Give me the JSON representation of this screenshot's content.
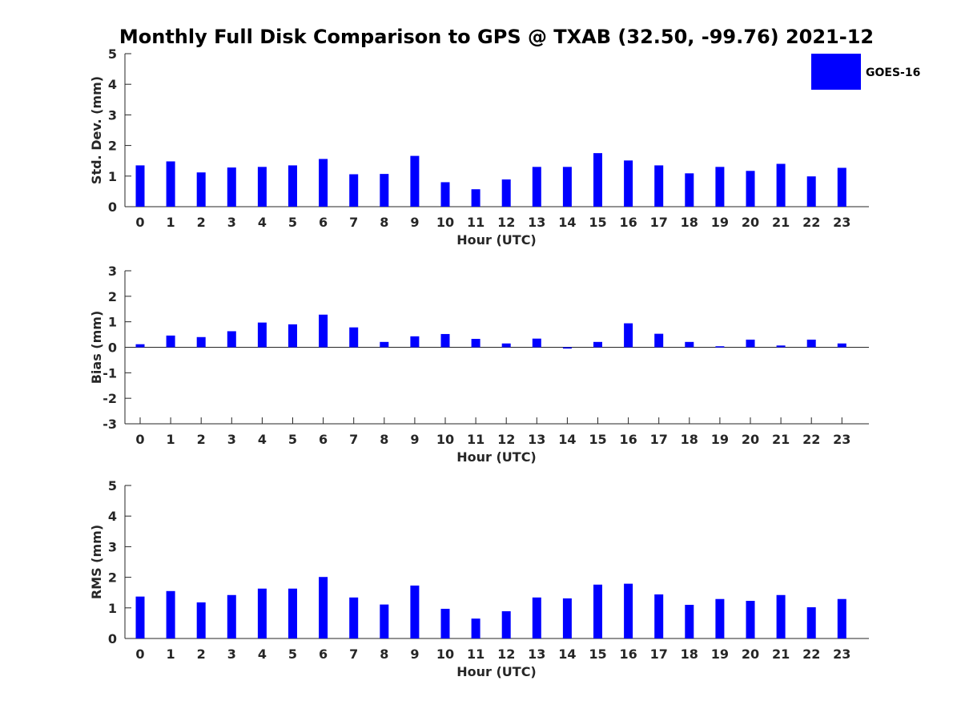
{
  "title": "Monthly Full Disk Comparison to GPS @ TXAB (32.50, -99.76) 2021-12",
  "colors": {
    "bar": "#0000ff",
    "axis": "#262626"
  },
  "legend": {
    "label": "GOES-16",
    "placement": "top-right"
  },
  "chart_data": [
    {
      "type": "bar",
      "xlabel": "Hour (UTC)",
      "ylabel": "Std. Dev. (mm)",
      "ylim": [
        0,
        5
      ],
      "yticks": [
        0,
        1,
        2,
        3,
        4,
        5
      ],
      "categories": [
        "0",
        "1",
        "2",
        "3",
        "4",
        "5",
        "6",
        "7",
        "8",
        "9",
        "10",
        "11",
        "12",
        "13",
        "14",
        "15",
        "16",
        "17",
        "18",
        "19",
        "20",
        "21",
        "22",
        "23"
      ],
      "series": [
        {
          "name": "GOES-16",
          "values": [
            1.35,
            1.48,
            1.12,
            1.28,
            1.3,
            1.35,
            1.56,
            1.06,
            1.07,
            1.66,
            0.8,
            0.57,
            0.89,
            1.3,
            1.3,
            1.75,
            1.51,
            1.35,
            1.09,
            1.3,
            1.17,
            1.4,
            0.99,
            1.27
          ]
        }
      ]
    },
    {
      "type": "bar",
      "xlabel": "Hour (UTC)",
      "ylabel": "Bias (mm)",
      "ylim": [
        -3,
        3
      ],
      "yticks": [
        -3,
        -2,
        -1,
        0,
        1,
        2,
        3
      ],
      "categories": [
        "0",
        "1",
        "2",
        "3",
        "4",
        "5",
        "6",
        "7",
        "8",
        "9",
        "10",
        "11",
        "12",
        "13",
        "14",
        "15",
        "16",
        "17",
        "18",
        "19",
        "20",
        "21",
        "22",
        "23"
      ],
      "series": [
        {
          "name": "GOES-16",
          "values": [
            0.12,
            0.46,
            0.4,
            0.63,
            0.97,
            0.9,
            1.28,
            0.78,
            0.21,
            0.43,
            0.52,
            0.33,
            0.15,
            0.34,
            -0.05,
            0.21,
            0.94,
            0.53,
            0.21,
            0.04,
            0.3,
            0.07,
            0.3,
            0.15
          ]
        }
      ]
    },
    {
      "type": "bar",
      "xlabel": "Hour (UTC)",
      "ylabel": "RMS (mm)",
      "ylim": [
        0,
        5
      ],
      "yticks": [
        0,
        1,
        2,
        3,
        4,
        5
      ],
      "categories": [
        "0",
        "1",
        "2",
        "3",
        "4",
        "5",
        "6",
        "7",
        "8",
        "9",
        "10",
        "11",
        "12",
        "13",
        "14",
        "15",
        "16",
        "17",
        "18",
        "19",
        "20",
        "21",
        "22",
        "23"
      ],
      "series": [
        {
          "name": "GOES-16",
          "values": [
            1.37,
            1.55,
            1.18,
            1.42,
            1.63,
            1.63,
            2.01,
            1.34,
            1.11,
            1.73,
            0.97,
            0.65,
            0.89,
            1.34,
            1.31,
            1.76,
            1.79,
            1.44,
            1.1,
            1.29,
            1.23,
            1.42,
            1.02,
            1.29
          ]
        }
      ]
    }
  ]
}
